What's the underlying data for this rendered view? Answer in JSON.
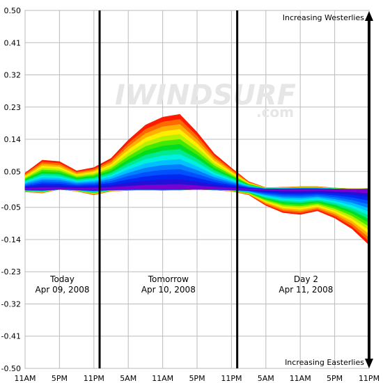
{
  "chart_data": {
    "type": "area",
    "watermark": {
      "main": "IWINDSURF",
      "sub": ".com"
    },
    "ylim": [
      -0.5,
      0.5
    ],
    "y_ticks": [
      "0.50",
      "0.41",
      "0.32",
      "0.23",
      "0.14",
      "0.05",
      "-0.05",
      "-0.14",
      "-0.23",
      "-0.32",
      "-0.41",
      "-0.50"
    ],
    "x_ticks": [
      "11AM",
      "5PM",
      "11PM",
      "5AM",
      "11AM",
      "5PM",
      "11PM",
      "5AM",
      "11AM",
      "5PM",
      "11PM"
    ],
    "grid": true,
    "annotations": {
      "top": "Increasing Westerlies",
      "bottom": "Increasing Easterlies"
    },
    "days": [
      {
        "name": "Today",
        "date": "Apr 09, 2008"
      },
      {
        "name": "Tomorrow",
        "date": "Apr 10, 2008"
      },
      {
        "name": "Day 2",
        "date": "Apr 11, 2008"
      }
    ],
    "x_hours": [
      11,
      14,
      17,
      20,
      23,
      26,
      29,
      32,
      35,
      38,
      41,
      44,
      47,
      50,
      53,
      56,
      59,
      62,
      65,
      68,
      71
    ],
    "band_colors": [
      "#ff1a00",
      "#ff6a00",
      "#ffb000",
      "#ffee00",
      "#b8f000",
      "#44e800",
      "#00dd22",
      "#00e890",
      "#00f0e0",
      "#00c0ff",
      "#0080ff",
      "#0050ff",
      "#0028f0",
      "#2010d8",
      "#7a00d0"
    ],
    "upper_envelope": [
      0.046,
      0.082,
      0.078,
      0.052,
      0.061,
      0.087,
      0.138,
      0.18,
      0.202,
      0.21,
      0.16,
      0.1,
      0.06,
      0.022,
      0.005,
      0.006,
      0.008,
      0.008,
      0.004,
      0.002,
      0.003
    ],
    "lower_envelope": [
      -0.007,
      -0.01,
      0.0,
      -0.005,
      -0.015,
      -0.005,
      -0.003,
      -0.002,
      -0.003,
      -0.002,
      0.0,
      -0.002,
      -0.005,
      -0.015,
      -0.045,
      -0.065,
      -0.07,
      -0.06,
      -0.08,
      -0.11,
      -0.155
    ]
  }
}
